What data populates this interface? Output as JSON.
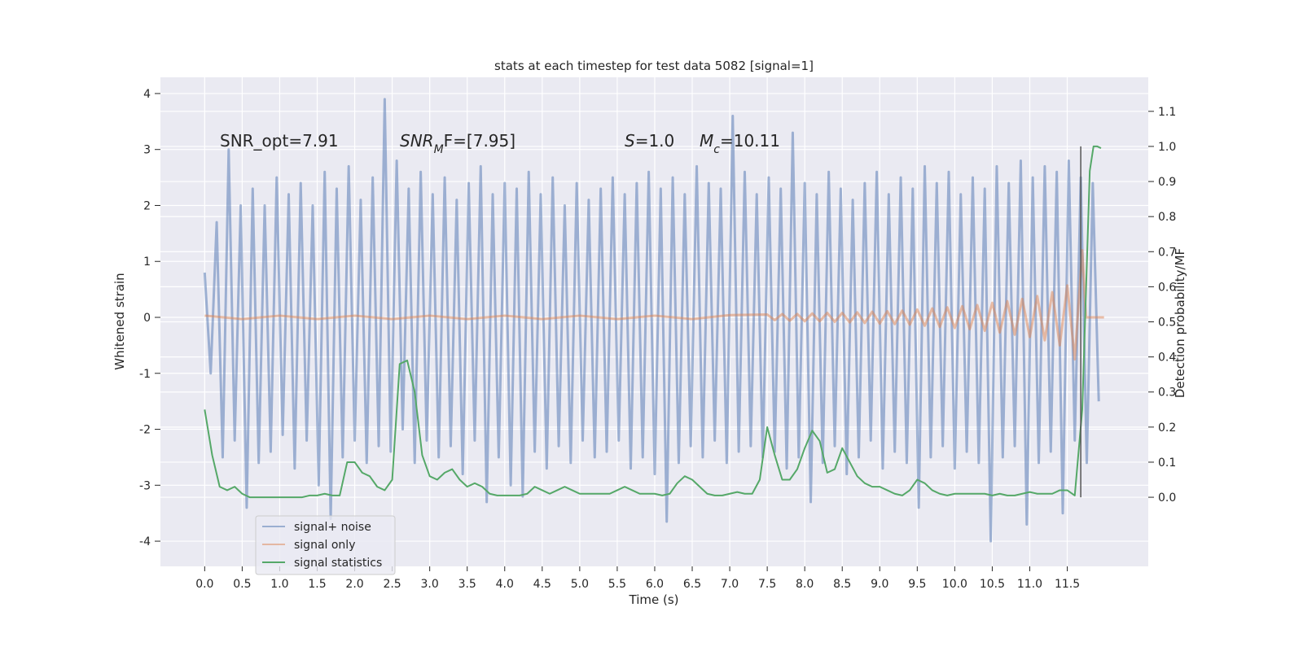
{
  "chart_data": {
    "type": "line",
    "title": "stats at each timestep for test data 5082 [signal=1]",
    "xlabel": "Time (s)",
    "ylabel": "Whitened strain",
    "y2label": "Detection probability/MF",
    "xlim": [
      -0.59,
      12.58
    ],
    "ylim": [
      -4.45,
      4.29
    ],
    "y2lim": [
      -0.197,
      1.197
    ],
    "xticks": [
      {
        "value": 0,
        "label": "0.0"
      },
      {
        "value": 0.5,
        "label": "0.5"
      },
      {
        "value": 1,
        "label": "1.0"
      },
      {
        "value": 1.5,
        "label": "1.5"
      },
      {
        "value": 2,
        "label": "2.0"
      },
      {
        "value": 2.5,
        "label": "2.5"
      },
      {
        "value": 3,
        "label": "3.0"
      },
      {
        "value": 3.5,
        "label": "3.5"
      },
      {
        "value": 4,
        "label": "4.0"
      },
      {
        "value": 4.5,
        "label": "4.5"
      },
      {
        "value": 5,
        "label": "5.0"
      },
      {
        "value": 5.5,
        "label": "5.5"
      },
      {
        "value": 6,
        "label": "6.0"
      },
      {
        "value": 6.5,
        "label": "6.5"
      },
      {
        "value": 7,
        "label": "7.0"
      },
      {
        "value": 7.5,
        "label": "7.5"
      },
      {
        "value": 8,
        "label": "8.0"
      },
      {
        "value": 8.5,
        "label": "8.5"
      },
      {
        "value": 9,
        "label": "9.0"
      },
      {
        "value": 9.5,
        "label": "9.5"
      },
      {
        "value": 10,
        "label": "10.0"
      },
      {
        "value": 10.5,
        "label": "10.5"
      },
      {
        "value": 11,
        "label": "11.0"
      },
      {
        "value": 11.5,
        "label": "11.5"
      }
    ],
    "yticks": [
      -4,
      -3,
      -2,
      -1,
      0,
      1,
      2,
      3,
      4
    ],
    "y2ticks": [
      {
        "value": 0,
        "label": "0.0"
      },
      {
        "value": 0.1,
        "label": "0.1"
      },
      {
        "value": 0.2,
        "label": "0.2"
      },
      {
        "value": 0.3,
        "label": "0.3"
      },
      {
        "value": 0.4,
        "label": "0.4"
      },
      {
        "value": 0.5,
        "label": "0.5"
      },
      {
        "value": 0.6,
        "label": "0.6"
      },
      {
        "value": 0.7,
        "label": "0.7"
      },
      {
        "value": 0.8,
        "label": "0.8"
      },
      {
        "value": 0.9,
        "label": "0.9"
      },
      {
        "value": 1,
        "label": "1.0"
      },
      {
        "value": 1.1,
        "label": "1.1"
      }
    ],
    "grid": true,
    "legend": "lower left",
    "annotations": [
      {
        "parts": [
          {
            "text": "SNR_opt=7.91"
          }
        ]
      },
      {
        "parts": [
          {
            "text": "SNR",
            "italic": true
          },
          {
            "text": "M",
            "italic": true,
            "sub": true
          },
          {
            "text": "F=[7.95]"
          }
        ]
      },
      {
        "parts": [
          {
            "text": "S",
            "italic": true
          },
          {
            "text": "=1.0"
          }
        ]
      },
      {
        "parts": [
          {
            "text": "M",
            "italic": true
          },
          {
            "text": "c",
            "italic": true,
            "sub": true
          },
          {
            "text": "=10.11"
          }
        ]
      }
    ],
    "vline": {
      "x": 11.68,
      "y2": [
        0,
        1
      ],
      "color": "#555555"
    },
    "series": [
      {
        "name": "signal+ noise",
        "color": "#4c72b0",
        "x": [
          0,
          0.08,
          0.16,
          0.24,
          0.32,
          0.4,
          0.48,
          0.56,
          0.64,
          0.72,
          0.8,
          0.88,
          0.96,
          1.04,
          1.12,
          1.2,
          1.28,
          1.36,
          1.44,
          1.52,
          1.6,
          1.68,
          1.76,
          1.84,
          1.92,
          2,
          2.08,
          2.16,
          2.24,
          2.32,
          2.4,
          2.48,
          2.56,
          2.64,
          2.72,
          2.8,
          2.88,
          2.96,
          3.04,
          3.12,
          3.2,
          3.28,
          3.36,
          3.44,
          3.52,
          3.6,
          3.68,
          3.76,
          3.84,
          3.92,
          4,
          4.08,
          4.16,
          4.24,
          4.32,
          4.4,
          4.48,
          4.56,
          4.64,
          4.72,
          4.8,
          4.88,
          4.96,
          5.04,
          5.12,
          5.2,
          5.28,
          5.36,
          5.44,
          5.52,
          5.6,
          5.68,
          5.76,
          5.84,
          5.92,
          6,
          6.08,
          6.16,
          6.24,
          6.32,
          6.4,
          6.48,
          6.56,
          6.64,
          6.72,
          6.8,
          6.88,
          6.96,
          7.04,
          7.12,
          7.2,
          7.28,
          7.36,
          7.44,
          7.52,
          7.6,
          7.68,
          7.76,
          7.84,
          7.92,
          8,
          8.08,
          8.16,
          8.24,
          8.32,
          8.4,
          8.48,
          8.56,
          8.64,
          8.72,
          8.8,
          8.88,
          8.96,
          9.04,
          9.12,
          9.2,
          9.28,
          9.36,
          9.44,
          9.52,
          9.6,
          9.68,
          9.76,
          9.84,
          9.92,
          10,
          10.08,
          10.16,
          10.24,
          10.32,
          10.4,
          10.48,
          10.56,
          10.64,
          10.72,
          10.8,
          10.88,
          10.96,
          11.04,
          11.12,
          11.2,
          11.28,
          11.36,
          11.44,
          11.52,
          11.6,
          11.68,
          11.76,
          11.84,
          11.92
        ],
        "values": [
          0.8,
          -1.0,
          1.7,
          -2.5,
          3.0,
          -2.2,
          2.0,
          -3.4,
          2.3,
          -2.6,
          2.0,
          -2.4,
          2.5,
          -2.1,
          2.2,
          -2.7,
          2.4,
          -2.2,
          2.0,
          -3.0,
          2.6,
          -3.6,
          2.3,
          -2.5,
          2.7,
          -2.2,
          2.1,
          -2.6,
          2.5,
          -2.3,
          3.9,
          -2.4,
          2.8,
          -2.0,
          2.3,
          -2.6,
          2.6,
          -2.2,
          2.2,
          -2.5,
          2.5,
          -2.3,
          2.1,
          -2.8,
          2.4,
          -2.2,
          2.7,
          -3.3,
          2.2,
          -2.5,
          2.4,
          -3.0,
          2.3,
          -3.2,
          2.6,
          -2.4,
          2.2,
          -2.7,
          2.5,
          -2.3,
          2.0,
          -2.6,
          2.4,
          -2.2,
          2.1,
          -2.5,
          2.3,
          -2.4,
          2.5,
          -2.2,
          2.2,
          -2.7,
          2.4,
          -2.5,
          2.6,
          -2.8,
          2.3,
          -3.65,
          2.5,
          -2.6,
          2.2,
          -2.3,
          2.7,
          -2.5,
          2.4,
          -2.2,
          2.3,
          -2.6,
          3.6,
          -2.4,
          2.6,
          -2.3,
          2.2,
          -2.5,
          2.5,
          -2.4,
          2.3,
          -2.7,
          3.3,
          -2.5,
          2.4,
          -3.3,
          2.2,
          -2.6,
          2.6,
          -2.3,
          2.3,
          -2.8,
          2.1,
          -2.5,
          2.4,
          -2.2,
          2.6,
          -2.7,
          2.2,
          -2.4,
          2.5,
          -2.6,
          2.3,
          -3.4,
          2.7,
          -2.5,
          2.4,
          -2.3,
          2.6,
          -2.7,
          2.2,
          -2.4,
          2.5,
          -2.6,
          2.3,
          -4.0,
          2.7,
          -2.5,
          2.4,
          -2.3,
          2.8,
          -3.7,
          2.5,
          -2.6,
          2.7,
          -2.4,
          2.6,
          -3.5,
          2.8,
          -2.2,
          2.5,
          -2.6,
          2.4,
          -1.5
        ]
      },
      {
        "name": "signal only",
        "color": "#dd8452",
        "x": [
          0,
          0.5,
          1,
          1.5,
          2,
          2.5,
          3,
          3.5,
          4,
          4.5,
          5,
          5.5,
          6,
          6.5,
          7,
          7.5,
          7.6,
          7.7,
          7.8,
          7.9,
          8,
          8.1,
          8.2,
          8.3,
          8.4,
          8.5,
          8.6,
          8.7,
          8.8,
          8.9,
          9,
          9.1,
          9.2,
          9.3,
          9.4,
          9.5,
          9.6,
          9.7,
          9.8,
          9.9,
          10,
          10.1,
          10.2,
          10.3,
          10.4,
          10.5,
          10.6,
          10.7,
          10.8,
          10.9,
          11,
          11.1,
          11.2,
          11.3,
          11.4,
          11.5,
          11.6,
          11.7,
          11.75,
          11.99
        ],
        "values": [
          0.03,
          -0.03,
          0.03,
          -0.03,
          0.03,
          -0.03,
          0.03,
          -0.03,
          0.03,
          -0.03,
          0.03,
          -0.03,
          0.03,
          -0.03,
          0.04,
          0.05,
          -0.05,
          0.06,
          -0.06,
          0.06,
          -0.07,
          0.07,
          -0.07,
          0.08,
          -0.08,
          0.08,
          -0.09,
          0.09,
          -0.1,
          0.1,
          -0.11,
          0.11,
          -0.12,
          0.12,
          -0.13,
          0.14,
          -0.15,
          0.16,
          -0.17,
          0.18,
          -0.19,
          0.2,
          -0.21,
          0.22,
          -0.24,
          0.26,
          -0.27,
          0.29,
          -0.31,
          0.33,
          -0.35,
          0.38,
          -0.41,
          0.45,
          -0.5,
          0.57,
          -0.75,
          1.2,
          0,
          0
        ]
      },
      {
        "name": "signal statistics",
        "color": "#55a868",
        "axis": "y2",
        "x": [
          0,
          0.1,
          0.2,
          0.3,
          0.4,
          0.5,
          0.6,
          0.7,
          0.8,
          0.9,
          1,
          1.1,
          1.2,
          1.3,
          1.4,
          1.5,
          1.6,
          1.7,
          1.8,
          1.9,
          2,
          2.1,
          2.2,
          2.3,
          2.4,
          2.5,
          2.6,
          2.7,
          2.8,
          2.9,
          3,
          3.1,
          3.2,
          3.3,
          3.4,
          3.5,
          3.6,
          3.7,
          3.8,
          3.9,
          4,
          4.1,
          4.2,
          4.3,
          4.4,
          4.5,
          4.6,
          4.7,
          4.8,
          4.9,
          5,
          5.1,
          5.2,
          5.3,
          5.4,
          5.5,
          5.6,
          5.7,
          5.8,
          5.9,
          6,
          6.1,
          6.2,
          6.3,
          6.4,
          6.5,
          6.6,
          6.7,
          6.8,
          6.9,
          7,
          7.1,
          7.2,
          7.3,
          7.4,
          7.5,
          7.6,
          7.7,
          7.8,
          7.9,
          8,
          8.1,
          8.2,
          8.3,
          8.4,
          8.5,
          8.6,
          8.7,
          8.8,
          8.9,
          9,
          9.1,
          9.2,
          9.3,
          9.4,
          9.5,
          9.6,
          9.7,
          9.8,
          9.9,
          10,
          10.1,
          10.2,
          10.3,
          10.4,
          10.5,
          10.6,
          10.7,
          10.8,
          10.9,
          11,
          11.1,
          11.2,
          11.3,
          11.4,
          11.5,
          11.6,
          11.7,
          11.8,
          11.85,
          11.9,
          11.95
        ],
        "values": [
          0.25,
          0.12,
          0.03,
          0.02,
          0.03,
          0.01,
          0,
          0,
          0,
          0,
          0,
          0,
          0,
          0,
          0.005,
          0.005,
          0.01,
          0.005,
          0.005,
          0.1,
          0.1,
          0.07,
          0.06,
          0.03,
          0.02,
          0.05,
          0.38,
          0.39,
          0.3,
          0.12,
          0.06,
          0.05,
          0.07,
          0.08,
          0.05,
          0.03,
          0.04,
          0.03,
          0.01,
          0.005,
          0.005,
          0.005,
          0.005,
          0.01,
          0.03,
          0.02,
          0.01,
          0.02,
          0.03,
          0.02,
          0.01,
          0.01,
          0.01,
          0.01,
          0.01,
          0.02,
          0.03,
          0.02,
          0.01,
          0.01,
          0.01,
          0.005,
          0.01,
          0.04,
          0.06,
          0.05,
          0.03,
          0.01,
          0.005,
          0.005,
          0.01,
          0.015,
          0.01,
          0.01,
          0.05,
          0.2,
          0.12,
          0.05,
          0.05,
          0.08,
          0.14,
          0.19,
          0.16,
          0.07,
          0.08,
          0.14,
          0.1,
          0.06,
          0.04,
          0.03,
          0.03,
          0.02,
          0.01,
          0.005,
          0.02,
          0.05,
          0.04,
          0.02,
          0.01,
          0.005,
          0.01,
          0.01,
          0.01,
          0.01,
          0.01,
          0.005,
          0.01,
          0.005,
          0.005,
          0.01,
          0.015,
          0.01,
          0.01,
          0.01,
          0.02,
          0.02,
          0.005,
          0.25,
          0.93,
          1.0,
          1.0,
          0.995
        ]
      }
    ]
  }
}
